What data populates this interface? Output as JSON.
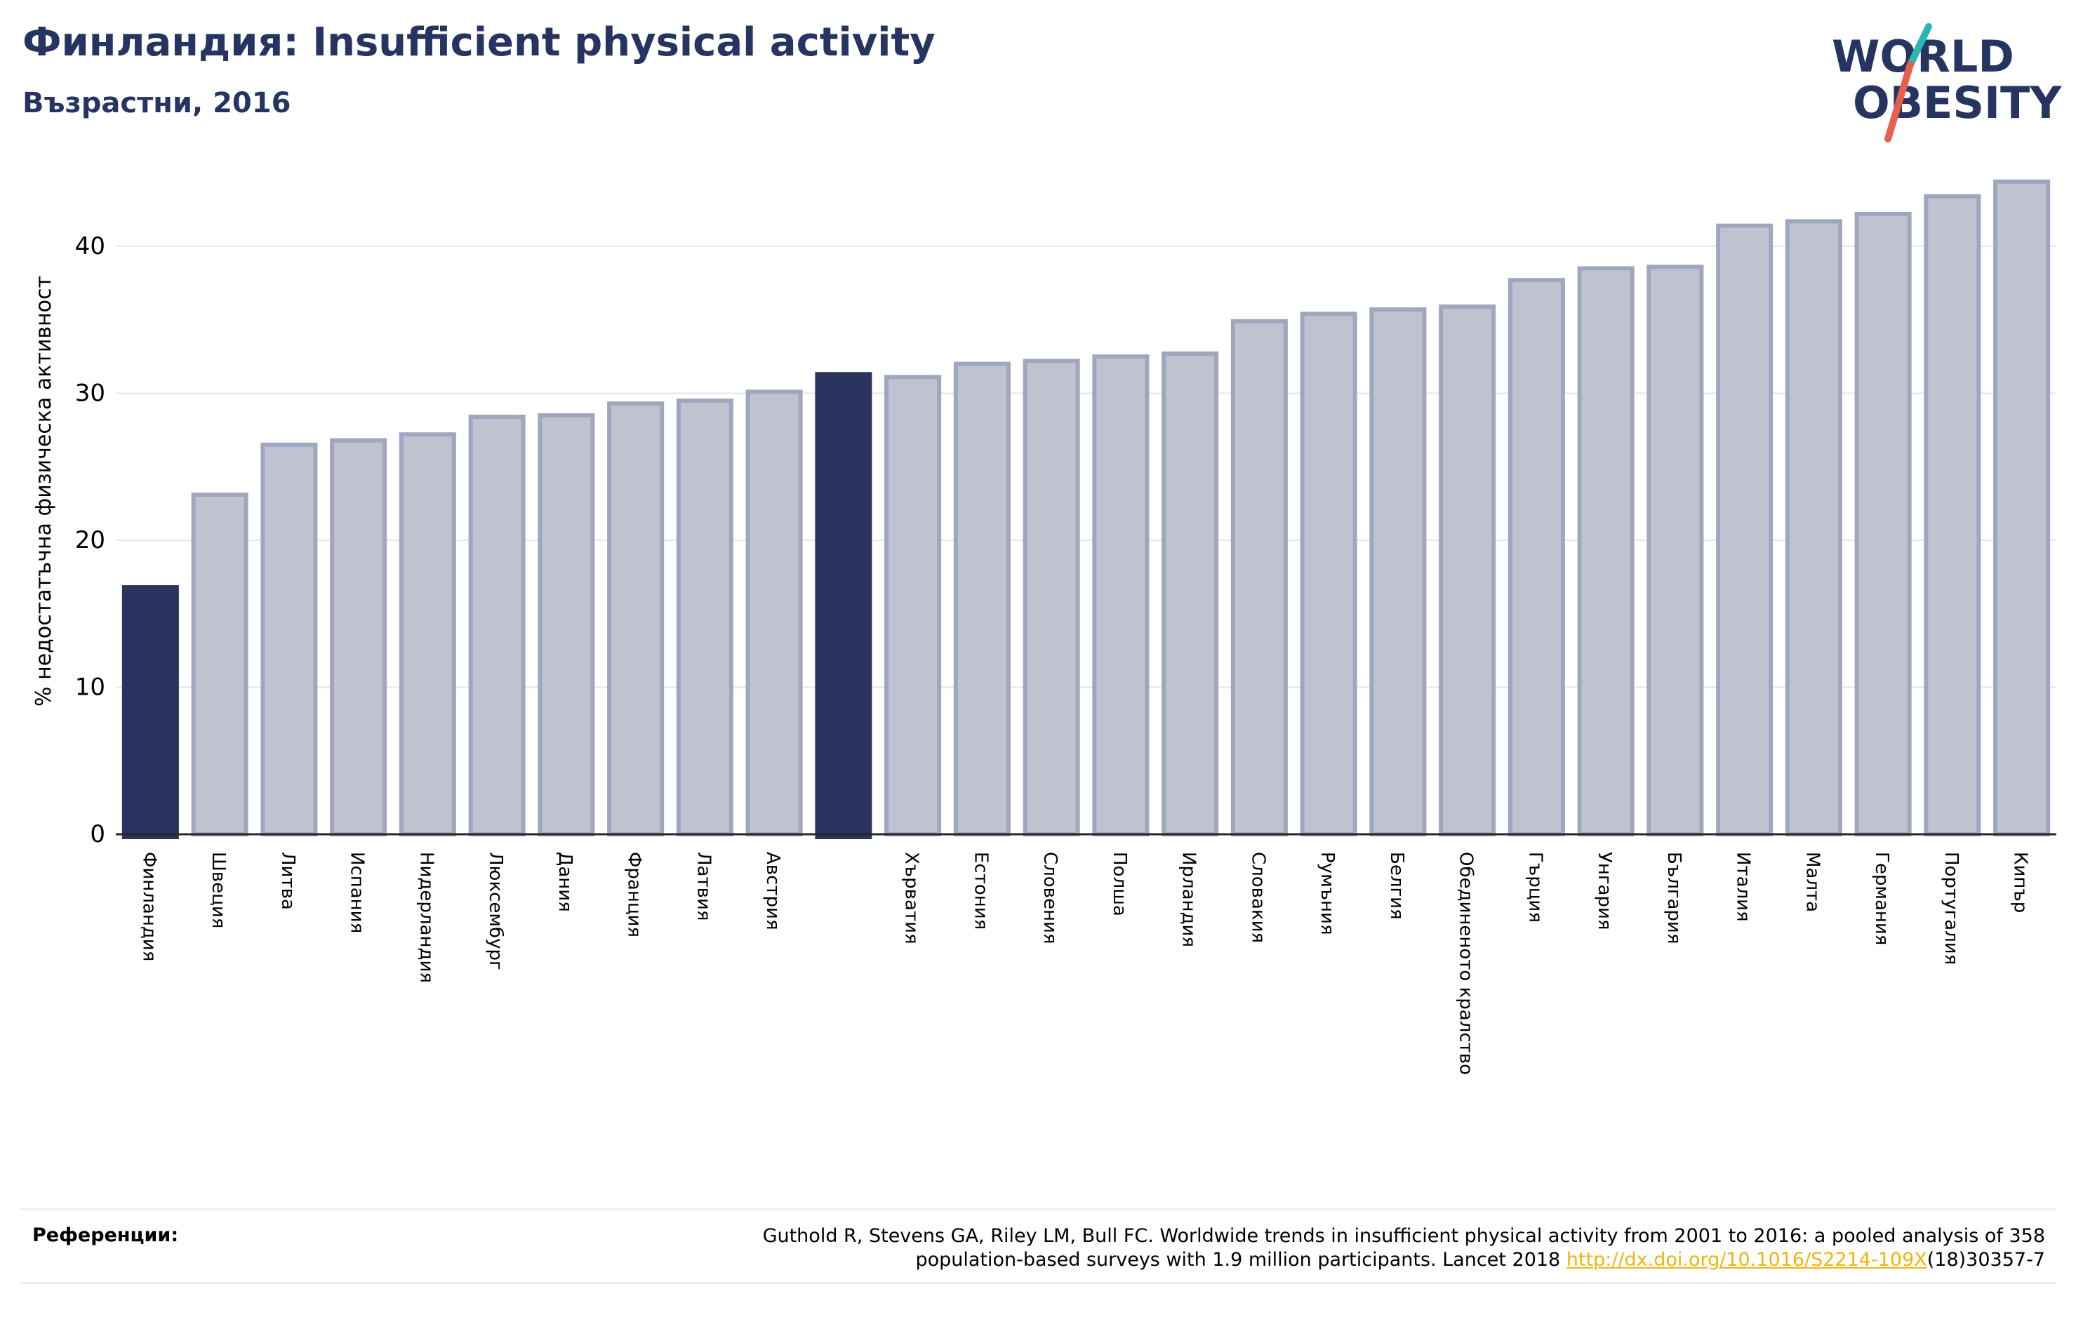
{
  "header": {
    "title": "Финландия: Insufficient physical activity",
    "subtitle": "Възрастни, 2016"
  },
  "logo": {
    "line1": "WORLD",
    "line2": "OBESITY"
  },
  "colors": {
    "highlight": "#2a355f",
    "bar_fill": "#c0c3cf",
    "bar_edge": "#a1a6bf",
    "text": "#263461"
  },
  "references": {
    "label": "Референции:",
    "line1": "Guthold R, Stevens GA, Riley LM, Bull FC. Worldwide trends in insufficient physical activity from 2001 to 2016: a pooled analysis of 358",
    "line2_prefix": "population-based surveys with 1.9 million participants. Lancet 2018 ",
    "link": "http://dx.doi.org/10.1016/S2214-109X",
    "line2_suffix": "(18)30357-7"
  },
  "chart_data": {
    "type": "bar",
    "ylabel": "% недостатъчна физическа активност",
    "ylim": [
      0,
      46
    ],
    "yticks": [
      0,
      10,
      20,
      30,
      40
    ],
    "grid": true,
    "categories": [
      "Финландия",
      "Швеция",
      "Литва",
      "Испания",
      "Нидерландия",
      "Люксембург",
      "Дания",
      "Франция",
      "Латвия",
      "Австрия",
      "",
      "Хърватия",
      "Естония",
      "Словения",
      "Полша",
      "Ирландия",
      "Словакия",
      "Румъния",
      "Белгия",
      "Обединеното кралство",
      "Гърция",
      "Унгария",
      "България",
      "Италия",
      "Малта",
      "Германия",
      "Португалия",
      "Кипър"
    ],
    "values": [
      16.8,
      23.1,
      26.5,
      26.8,
      27.2,
      28.4,
      28.5,
      29.3,
      29.5,
      30.1,
      31.3,
      31.1,
      32.0,
      32.2,
      32.5,
      32.7,
      34.9,
      35.4,
      35.7,
      35.9,
      37.7,
      38.5,
      38.6,
      41.4,
      41.7,
      42.2,
      43.4,
      44.4
    ],
    "highlighted": [
      0,
      10
    ]
  }
}
